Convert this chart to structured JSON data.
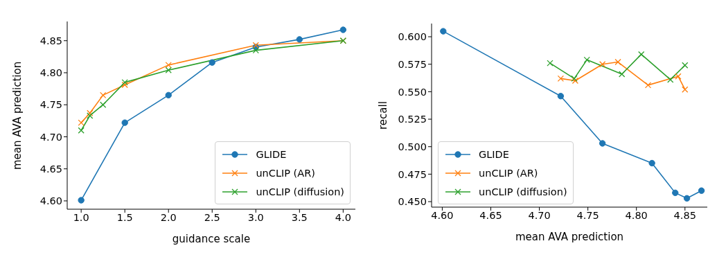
{
  "chart_data": [
    {
      "type": "line",
      "xlabel": "guidance scale",
      "ylabel": "mean AVA prediction",
      "xlim": [
        0.84,
        4.14
      ],
      "xticks": [
        {
          "value": 1,
          "label": "1.0"
        },
        {
          "value": 1.5,
          "label": "1.5"
        },
        {
          "value": 2,
          "label": "2.0"
        },
        {
          "value": 2.5,
          "label": "2.5"
        },
        {
          "value": 3,
          "label": "3.0"
        },
        {
          "value": 3.5,
          "label": "3.5"
        },
        {
          "value": 4,
          "label": "4.0"
        }
      ],
      "ylim": [
        4.587,
        4.88
      ],
      "yticks": [
        {
          "value": 4.6,
          "label": "4.60"
        },
        {
          "value": 4.65,
          "label": "4.65"
        },
        {
          "value": 4.7,
          "label": "4.70"
        },
        {
          "value": 4.75,
          "label": "4.75"
        },
        {
          "value": 4.8,
          "label": "4.80"
        },
        {
          "value": 4.85,
          "label": "4.85"
        }
      ],
      "grid": false,
      "legend": "bottom right",
      "series": [
        {
          "name": "GLIDE",
          "color": "#1f77b4",
          "marker": "circle",
          "x": [
            1,
            1.5,
            2,
            2.5,
            3,
            3.5,
            4
          ],
          "values": [
            4.601,
            4.722,
            4.765,
            4.816,
            4.84,
            4.852,
            4.867
          ]
        },
        {
          "name": "unCLIP (AR)",
          "color": "#ff7f0e",
          "marker": "cross",
          "x": [
            1,
            1.1,
            1.25,
            1.5,
            2,
            3,
            4
          ],
          "values": [
            4.722,
            4.737,
            4.765,
            4.781,
            4.812,
            4.843,
            4.85
          ]
        },
        {
          "name": "unCLIP (diffusion)",
          "color": "#2ca02c",
          "marker": "cross",
          "x": [
            1,
            1.1,
            1.25,
            1.5,
            2,
            3,
            4
          ],
          "values": [
            4.71,
            4.733,
            4.75,
            4.785,
            4.804,
            4.835,
            4.85
          ]
        }
      ]
    },
    {
      "type": "line",
      "xlabel": "mean AVA prediction",
      "ylabel": "recall",
      "xlim": [
        4.589,
        4.873
      ],
      "xticks": [
        {
          "value": 4.6,
          "label": "4.60"
        },
        {
          "value": 4.65,
          "label": "4.65"
        },
        {
          "value": 4.7,
          "label": "4.70"
        },
        {
          "value": 4.75,
          "label": "4.75"
        },
        {
          "value": 4.8,
          "label": "4.80"
        },
        {
          "value": 4.85,
          "label": "4.85"
        }
      ],
      "ylim": [
        0.445,
        0.612
      ],
      "yticks": [
        {
          "value": 0.45,
          "label": "0.450"
        },
        {
          "value": 0.475,
          "label": "0.475"
        },
        {
          "value": 0.5,
          "label": "0.500"
        },
        {
          "value": 0.525,
          "label": "0.525"
        },
        {
          "value": 0.55,
          "label": "0.550"
        },
        {
          "value": 0.575,
          "label": "0.575"
        },
        {
          "value": 0.6,
          "label": "0.600"
        }
      ],
      "grid": false,
      "legend": "bottom left",
      "series": [
        {
          "name": "GLIDE",
          "color": "#1f77b4",
          "marker": "circle",
          "x": [
            4.601,
            4.722,
            4.765,
            4.816,
            4.84,
            4.852,
            4.867
          ],
          "values": [
            0.605,
            0.546,
            0.503,
            0.485,
            0.458,
            0.453,
            0.46
          ]
        },
        {
          "name": "unCLIP (AR)",
          "color": "#ff7f0e",
          "marker": "cross",
          "x": [
            4.722,
            4.737,
            4.765,
            4.781,
            4.812,
            4.843,
            4.85
          ],
          "values": [
            0.562,
            0.56,
            0.575,
            0.577,
            0.556,
            0.564,
            0.552
          ]
        },
        {
          "name": "unCLIP (diffusion)",
          "color": "#2ca02c",
          "marker": "cross",
          "x": [
            4.711,
            4.736,
            4.749,
            4.785,
            4.805,
            4.835,
            4.85
          ],
          "values": [
            0.576,
            0.562,
            0.579,
            0.566,
            0.584,
            0.561,
            0.574
          ]
        }
      ]
    }
  ]
}
